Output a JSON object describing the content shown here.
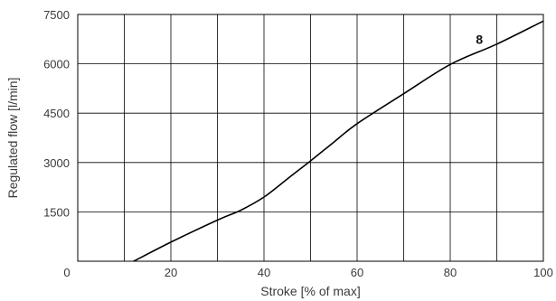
{
  "chart_data": {
    "type": "line",
    "xlabel": "Stroke [% of max]",
    "ylabel": "Regulated flow [l/min]",
    "xlim": [
      0,
      100
    ],
    "ylim": [
      0,
      7500
    ],
    "x_ticks": [
      0,
      20,
      40,
      60,
      80,
      100
    ],
    "x_tick_labels": [
      "0",
      "20",
      "40",
      "60",
      "80",
      "100"
    ],
    "y_ticks": [
      1500,
      3000,
      4500,
      6000,
      7500
    ],
    "y_tick_labels": [
      "1500",
      "3000",
      "4500",
      "6000",
      "7500"
    ],
    "grid": true,
    "legend": "none",
    "series": [
      {
        "name": "8",
        "color": "#000000",
        "x": [
          12,
          20,
          30,
          35,
          40,
          45,
          50,
          55,
          60,
          70,
          80,
          90,
          100
        ],
        "y": [
          0,
          580,
          1250,
          1550,
          1950,
          2500,
          3050,
          3620,
          4180,
          5090,
          5980,
          6600,
          7300
        ]
      }
    ]
  }
}
